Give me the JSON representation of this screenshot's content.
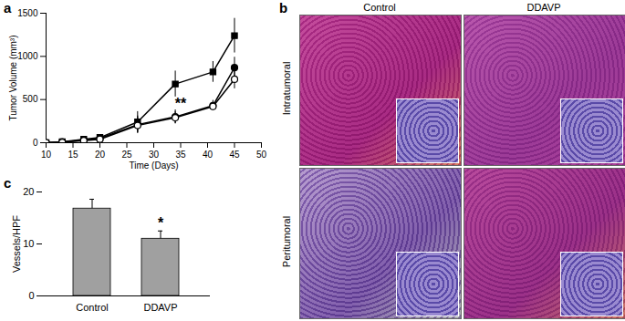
{
  "chart_data": [
    {
      "type": "line",
      "title": "a",
      "xlabel": "Time (Days)",
      "ylabel": "Tumor Volume (mm³)",
      "x": [
        10,
        13,
        17,
        20,
        27,
        34,
        41,
        45
      ],
      "series": [
        {
          "marker": "square",
          "color": "#000000",
          "values": [
            0,
            10,
            40,
            60,
            240,
            680,
            820,
            1240
          ],
          "error": [
            0,
            5,
            10,
            15,
            120,
            150,
            120,
            200
          ]
        },
        {
          "marker": "circle",
          "color": "#000000",
          "values": [
            0,
            10,
            30,
            50,
            210,
            300,
            430,
            870
          ],
          "error": [
            0,
            5,
            10,
            10,
            100,
            80,
            60,
            120
          ]
        },
        {
          "marker": "open_circle",
          "color": "#000000",
          "values": [
            0,
            5,
            25,
            40,
            200,
            290,
            420,
            735
          ],
          "error": [
            0,
            5,
            10,
            10,
            90,
            70,
            50,
            110
          ]
        }
      ],
      "xlim": [
        10,
        50
      ],
      "xticks": [
        10,
        15,
        20,
        25,
        30,
        35,
        40,
        45,
        50
      ],
      "ylim": [
        0,
        1500
      ],
      "yticks": [
        0,
        500,
        1000,
        1500
      ],
      "annotations": [
        {
          "text": "**",
          "x": 35,
          "y": 450
        }
      ]
    },
    {
      "type": "bar",
      "title": "c",
      "ylabel": "Vessels/HPF",
      "categories": [
        "Control",
        "DDAVP"
      ],
      "values": [
        16.8,
        11.0
      ],
      "error": [
        1.8,
        1.5
      ],
      "color": "#a0a0a0",
      "ylim": [
        0,
        20
      ],
      "yticks": [
        0,
        10,
        20
      ],
      "annotations": [
        {
          "text": "*",
          "category": "DDAVP"
        }
      ]
    }
  ],
  "image_panel": {
    "title": "b",
    "columns": [
      "Control",
      "DDAVP"
    ],
    "rows": [
      "Intratumoral",
      "Peritumoral"
    ]
  }
}
